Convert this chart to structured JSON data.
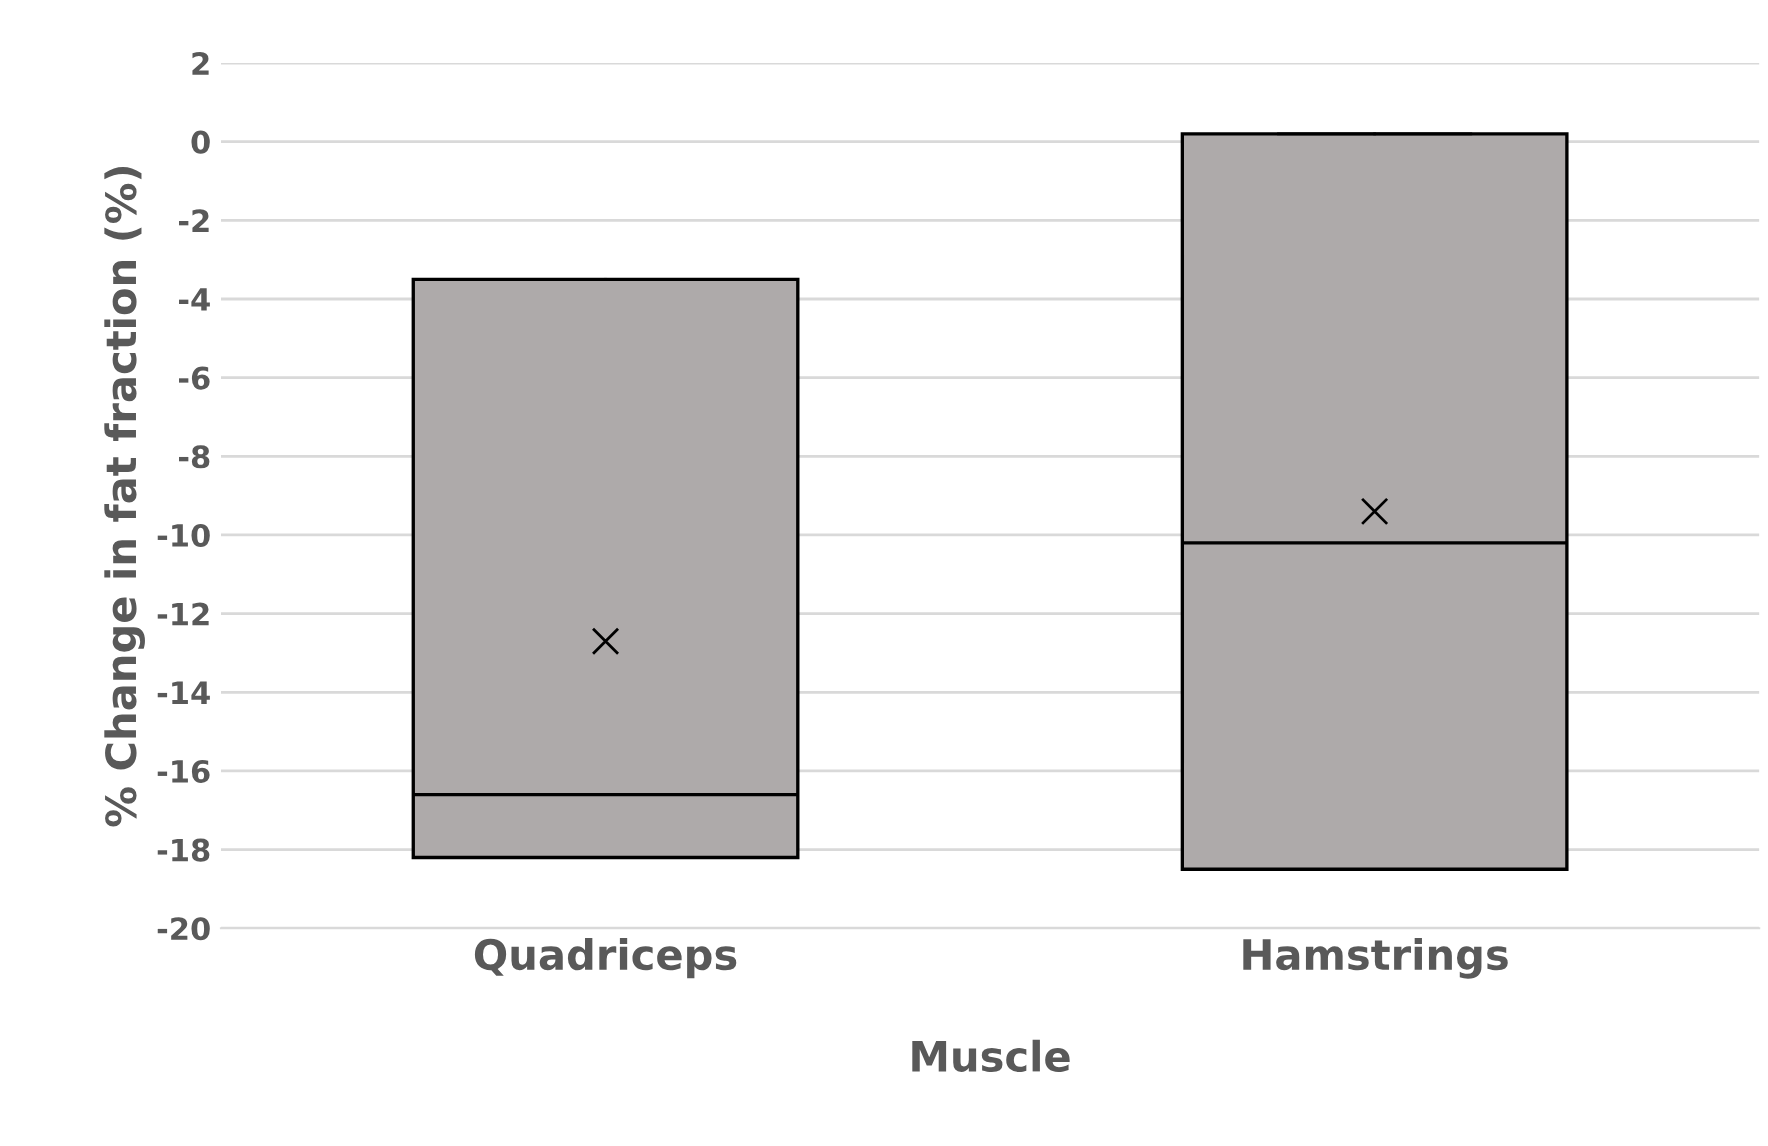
{
  "chart_data": {
    "type": "box",
    "xlabel": "Muscle",
    "ylabel": "% Change in fat fraction (%)",
    "categories": [
      "Quadriceps",
      "Hamstrings"
    ],
    "boxes": [
      {
        "low": -18.2,
        "q1": -18.2,
        "median": -16.6,
        "q3": -3.5,
        "high": -3.5,
        "mean": -12.7
      },
      {
        "low": -18.5,
        "q1": -18.5,
        "median": -10.2,
        "q3": 0.2,
        "high": 0.2,
        "mean": -9.4
      }
    ],
    "color": "#aeaaaa",
    "ylim": [
      -20,
      2
    ],
    "yticks": [
      -20,
      -18,
      -16,
      -14,
      -12,
      -10,
      -8,
      -6,
      -4,
      -2,
      0,
      2
    ],
    "grid": "y"
  }
}
